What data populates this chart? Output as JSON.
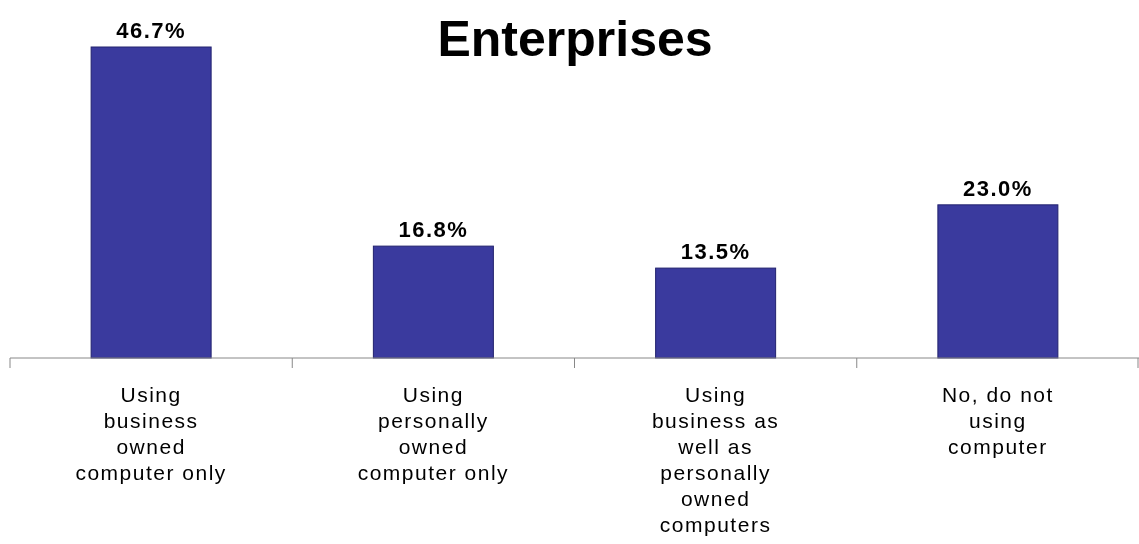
{
  "chart_data": {
    "type": "bar",
    "title": "Enterprises",
    "categories": [
      "Using business owned computer only",
      "Using personally owned computer only",
      "Using business as well as personally owned computers",
      "No, do not using computer"
    ],
    "values": [
      46.7,
      16.8,
      13.5,
      23.0
    ],
    "value_labels": [
      "46.7%",
      "16.8%",
      "13.5%",
      "23.0%"
    ],
    "color": "#3a3a9e"
  }
}
